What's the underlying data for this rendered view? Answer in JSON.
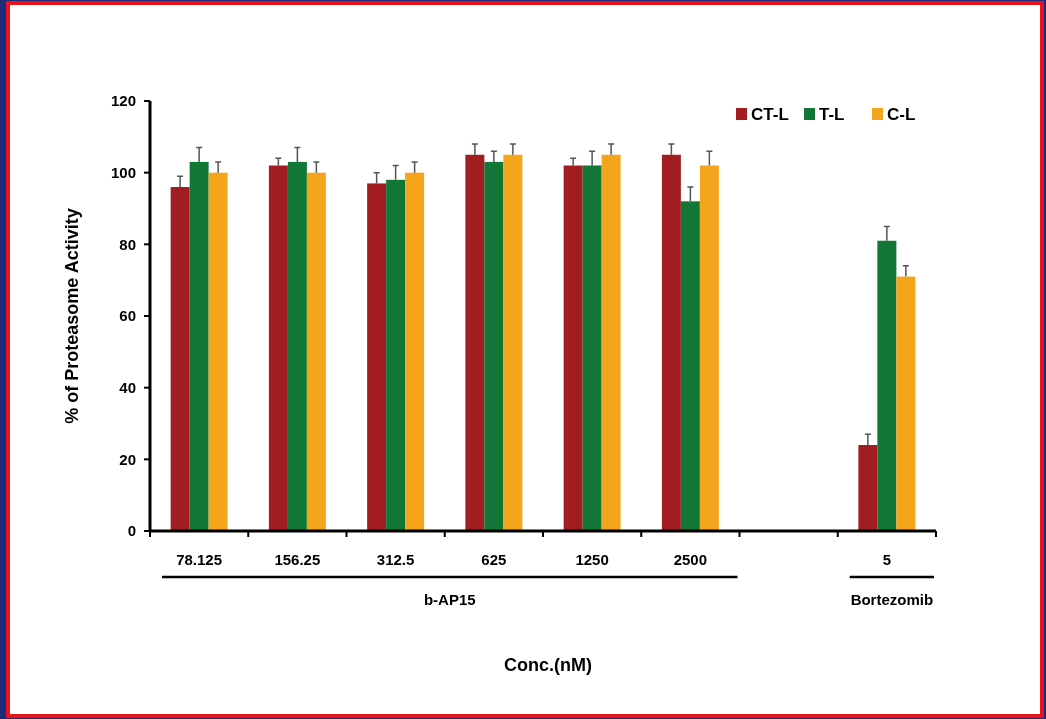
{
  "chart_data": {
    "type": "bar",
    "xlabel": "Conc.(nM)",
    "ylabel": "% of Proteasome Activity",
    "categories": [
      "78.125",
      "156.25",
      "312.5",
      "625",
      "1250",
      "2500",
      null,
      "5"
    ],
    "series": [
      {
        "name": "CT-L",
        "color": "#a11d21",
        "values": [
          96,
          102,
          97,
          105,
          102,
          105,
          null,
          24
        ],
        "errors": [
          [
            96,
            99
          ],
          [
            102,
            104
          ],
          [
            97,
            100
          ],
          [
            105,
            108
          ],
          [
            102,
            104
          ],
          [
            105,
            108
          ],
          null,
          [
            24,
            27
          ]
        ]
      },
      {
        "name": "T-L",
        "color": "#127637",
        "values": [
          103,
          103,
          98,
          103,
          102,
          92,
          null,
          81
        ],
        "errors": [
          [
            103,
            107
          ],
          [
            103,
            107
          ],
          [
            98,
            102
          ],
          [
            103,
            106
          ],
          [
            102,
            106
          ],
          [
            92,
            96
          ],
          null,
          [
            81,
            85
          ]
        ]
      },
      {
        "name": "C-L",
        "color": "#f5a51c",
        "values": [
          100,
          100,
          100,
          105,
          105,
          102,
          null,
          71
        ],
        "errors": [
          [
            100,
            103
          ],
          [
            100,
            103
          ],
          [
            100,
            103
          ],
          [
            105,
            108
          ],
          [
            105,
            108
          ],
          [
            102,
            106
          ],
          null,
          [
            71,
            74
          ]
        ]
      }
    ],
    "ylim": [
      0,
      120
    ],
    "yticks": [
      0,
      20,
      40,
      60,
      80,
      100,
      120
    ],
    "grid": false,
    "legend": "top right",
    "annotations": [
      "b-AP15",
      "Bortezomib"
    ]
  }
}
